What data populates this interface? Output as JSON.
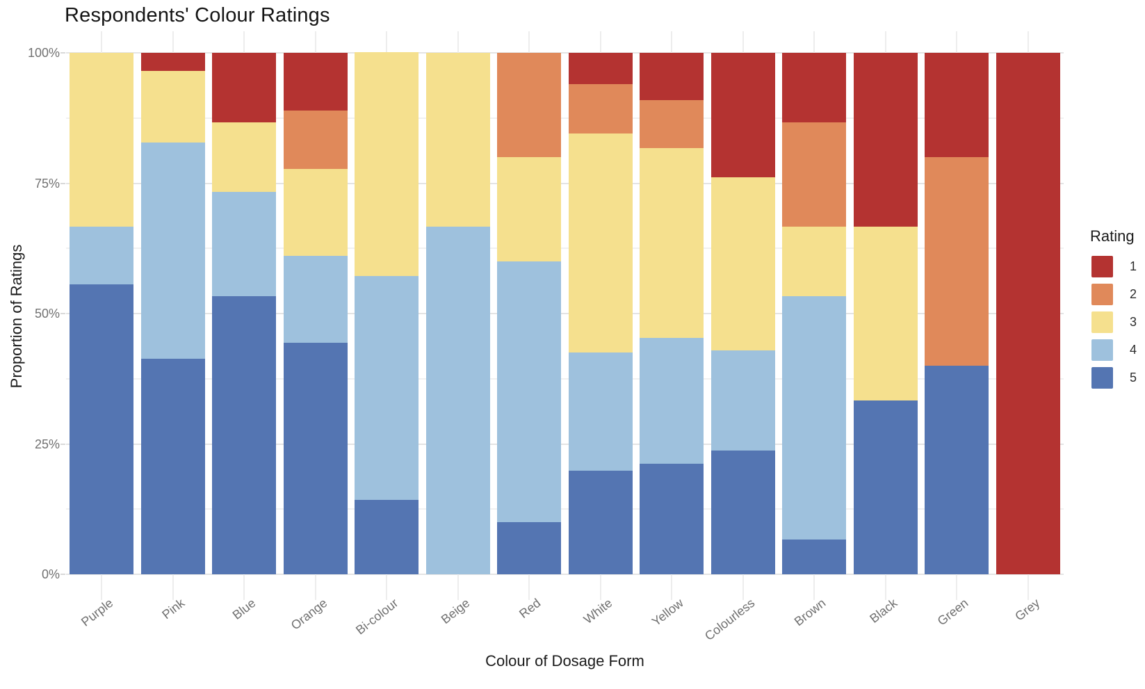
{
  "title": "Respondents' Colour Ratings",
  "chart_data": {
    "type": "bar",
    "stacked": true,
    "units": "percent",
    "title": "Respondents' Colour Ratings",
    "xlabel": "Colour of Dosage Form",
    "ylabel": "Proportion of Ratings",
    "ylim": [
      0,
      100
    ],
    "ytick_percent": [
      0,
      25,
      50,
      75,
      100
    ],
    "ytick_labels": [
      "0%",
      "25%",
      "50%",
      "75%",
      "100%"
    ],
    "grid": "major and minor horizontal gridlines, vertical gridline per category",
    "legend_title": "Rating",
    "legend_position": "right",
    "categories": [
      "Purple",
      "Pink",
      "Blue",
      "Orange",
      "Bi-colour",
      "Beige",
      "Red",
      "White",
      "Yellow",
      "Colourless",
      "Brown",
      "Black",
      "Green",
      "Grey"
    ],
    "series": [
      {
        "name": "1",
        "color": "#b43331",
        "values": [
          0,
          3.4,
          13.3,
          11.1,
          0,
          0,
          0,
          6.0,
          9.1,
          23.8,
          13.3,
          33.3,
          20.0,
          100
        ]
      },
      {
        "name": "2",
        "color": "#e0895a",
        "values": [
          0,
          0,
          0,
          11.1,
          0,
          0,
          20.0,
          9.4,
          9.1,
          0,
          20.0,
          0,
          40.0,
          0
        ]
      },
      {
        "name": "3",
        "color": "#f5e08e",
        "values": [
          33.3,
          13.8,
          13.4,
          16.7,
          42.9,
          33.3,
          20.0,
          42.1,
          36.4,
          33.3,
          13.3,
          33.4,
          0,
          0
        ]
      },
      {
        "name": "4",
        "color": "#9ec1dd",
        "values": [
          11.1,
          41.4,
          20.0,
          16.7,
          42.9,
          66.7,
          50.0,
          22.6,
          24.2,
          19.1,
          46.7,
          0,
          0,
          0
        ]
      },
      {
        "name": "5",
        "color": "#5475b2",
        "values": [
          55.6,
          41.4,
          53.3,
          44.4,
          14.3,
          0,
          10.0,
          19.9,
          21.2,
          23.8,
          6.7,
          33.3,
          40.0,
          0
        ]
      }
    ],
    "stacking_order_bottom_to_top": [
      "5",
      "4",
      "3",
      "2",
      "1"
    ]
  }
}
